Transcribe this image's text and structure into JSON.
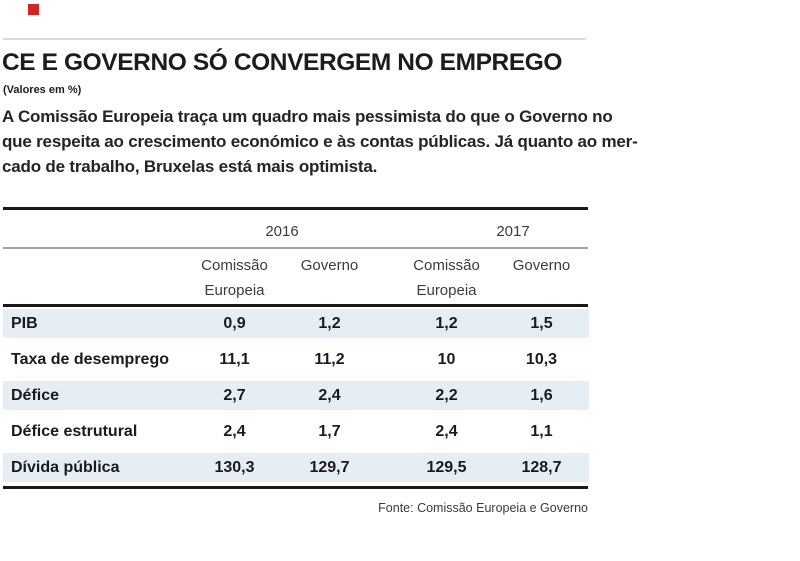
{
  "brand": {
    "accent_color": "#d02723"
  },
  "header": {
    "title": "CE E GOVERNO SÓ CONVERGEM NO EMPREGO",
    "subtitle": "(Valores em %)",
    "intro": "A Comissão Europeia traça um quadro mais pessimista do que o Governo no\nque respeita ao crescimento económico e às contas públicas. Já quanto ao mer-\ncado de trabalho, Bruxelas está mais optimista."
  },
  "table": {
    "year_groups": [
      "2016",
      "2017"
    ],
    "col_headers": [
      "Comissão\nEuropeia",
      "Governo",
      "Comissão\nEuropeia",
      "Governo"
    ],
    "rows": [
      {
        "label": "PIB",
        "values": [
          "0,9",
          "1,2",
          "1,2",
          "1,5"
        ]
      },
      {
        "label": "Taxa de desemprego",
        "values": [
          "11,1",
          "11,2",
          "10",
          "10,3"
        ]
      },
      {
        "label": "Défice",
        "values": [
          "2,7",
          "2,4",
          "2,2",
          "1,6"
        ]
      },
      {
        "label": "Défice estrutural",
        "values": [
          "2,4",
          "1,7",
          "2,4",
          "1,1"
        ]
      },
      {
        "label": "Dívida pública",
        "values": [
          "130,3",
          "129,7",
          "129,5",
          "128,7"
        ]
      }
    ],
    "source": "Fonte: Comissão Europeia e Governo",
    "shaded_row_color": "#e5eef5"
  },
  "chart_data": {
    "type": "table",
    "title": "CE E GOVERNO SÓ CONVERGEM NO EMPREGO",
    "subtitle": "(Valores em %)",
    "categories": [
      "PIB",
      "Taxa de desemprego",
      "Défice",
      "Défice estrutural",
      "Dívida pública"
    ],
    "series": [
      {
        "name": "2016 Comissão Europeia",
        "values": [
          0.9,
          11.1,
          2.7,
          2.4,
          130.3
        ]
      },
      {
        "name": "2016 Governo",
        "values": [
          1.2,
          11.2,
          2.4,
          1.7,
          129.7
        ]
      },
      {
        "name": "2017 Comissão Europeia",
        "values": [
          1.2,
          10,
          2.2,
          2.4,
          129.5
        ]
      },
      {
        "name": "2017 Governo",
        "values": [
          1.5,
          10.3,
          1.6,
          1.1,
          128.7
        ]
      }
    ],
    "source": "Fonte: Comissão Europeia e Governo"
  }
}
